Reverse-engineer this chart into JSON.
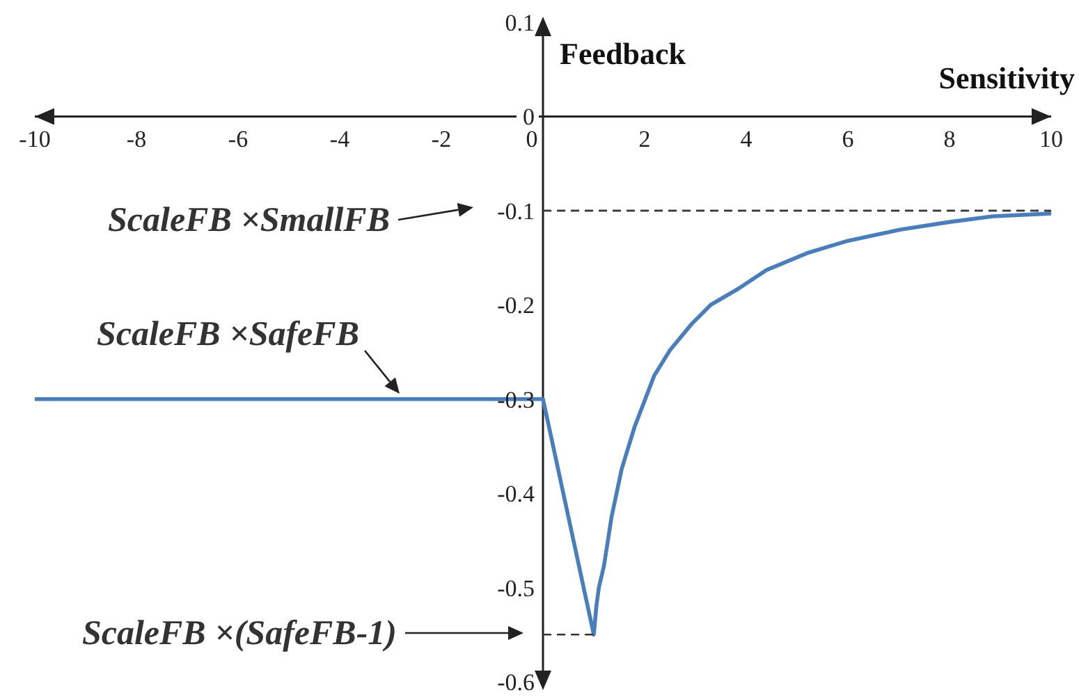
{
  "chart_data": {
    "type": "line",
    "xlabel": "Sensitivity",
    "ylabel": "Feedback",
    "xlim": [
      -10,
      10
    ],
    "xticks": [
      -10,
      -8,
      -6,
      -4,
      -2,
      0,
      2,
      4,
      6,
      8,
      10
    ],
    "ylim": [
      -0.6,
      0.1
    ],
    "yticks": [
      0.1,
      0,
      -0.1,
      -0.2,
      -0.3,
      -0.4,
      -0.5,
      -0.6
    ],
    "marker": "none",
    "grid": false,
    "series": [
      {
        "color": "#4a7ebb",
        "line_style": "solid",
        "x": [
          -10,
          0,
          1,
          1.05,
          1.1,
          1.2,
          1.35,
          1.55,
          1.8,
          2.19,
          2.5,
          2.93,
          3.3,
          3.84,
          4.4,
          5.2,
          6,
          7.04,
          8,
          8.85,
          10
        ],
        "values": [
          -0.3,
          -0.3,
          -0.55,
          -0.52,
          -0.5,
          -0.477,
          -0.425,
          -0.374,
          -0.33,
          -0.275,
          -0.248,
          -0.22,
          -0.2,
          -0.183,
          -0.163,
          -0.145,
          -0.132,
          -0.12,
          -0.112,
          -0.106,
          -0.103
        ]
      },
      {
        "color": "#333333",
        "line_style": "dashed",
        "x": [
          0,
          10
        ],
        "values": [
          -0.1,
          -0.1
        ]
      },
      {
        "color": "#333333",
        "line_style": "dashed",
        "x": [
          0,
          1
        ],
        "values": [
          -0.55,
          -0.55
        ]
      }
    ],
    "annotations": [
      "ScaleFB ×SmallFB",
      "ScaleFB ×SafeFB",
      "ScaleFB ×(SafeFB-1)"
    ]
  }
}
